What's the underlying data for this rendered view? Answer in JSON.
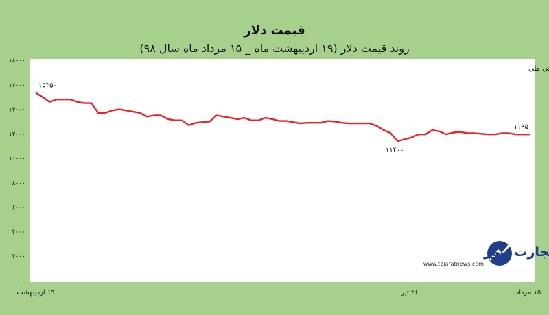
{
  "chart_data": {
    "type": "line",
    "title": "قیمت دلار",
    "subtitle": "روند قیمت دلار (۱۹ اردیبهشت ماه _ ۱۵ مرداد ماه سال ۹۸)",
    "source": "منبع: صرافی ملی",
    "x_labels": [
      "۱۹ اردیبهشت",
      "۲۶ تیر",
      "۱۵ مرداد"
    ],
    "y_ticks": [
      "۰",
      "۲۰۰۰",
      "۴۰۰۰",
      "۶۰۰۰",
      "۸۰۰۰",
      "۱۰۰۰۰",
      "۱۲۰۰۰",
      "۱۴۰۰۰",
      "۱۶۰۰۰",
      "۱۸۰۰۰"
    ],
    "y_tick_values": [
      0,
      2000,
      4000,
      6000,
      8000,
      10000,
      12000,
      14000,
      16000,
      18000
    ],
    "ylim": [
      0,
      18000
    ],
    "series": [
      {
        "color": "#e8232a",
        "values": [
          15350,
          15000,
          14600,
          14800,
          14800,
          14800,
          14600,
          14500,
          14500,
          13700,
          13700,
          13900,
          14000,
          13900,
          13800,
          13700,
          13400,
          13500,
          13500,
          13200,
          13100,
          13100,
          12700,
          12900,
          12950,
          13000,
          13500,
          13400,
          13300,
          13200,
          13300,
          13100,
          13100,
          13300,
          13200,
          13050,
          13050,
          12950,
          12850,
          12900,
          12900,
          12900,
          13050,
          13000,
          12900,
          12850,
          12850,
          12850,
          12850,
          12650,
          12300,
          12050,
          11400,
          11550,
          11700,
          11950,
          11950,
          12300,
          12200,
          11950,
          12100,
          12150,
          12050,
          12050,
          12000,
          11950,
          11950,
          12050,
          12050,
          11950,
          11950,
          11950
        ]
      }
    ],
    "annotations": [
      {
        "label": "۱۵۳۵۰",
        "index": 0,
        "value": 15350
      },
      {
        "label": "۱۱۴۰۰",
        "index": 52,
        "value": 11400
      },
      {
        "label": "۱۱۹۵۰",
        "index": 71,
        "value": 11950
      }
    ]
  },
  "logo": {
    "name": "تجارت نیوز",
    "url": "www.tejaratnews.com"
  }
}
